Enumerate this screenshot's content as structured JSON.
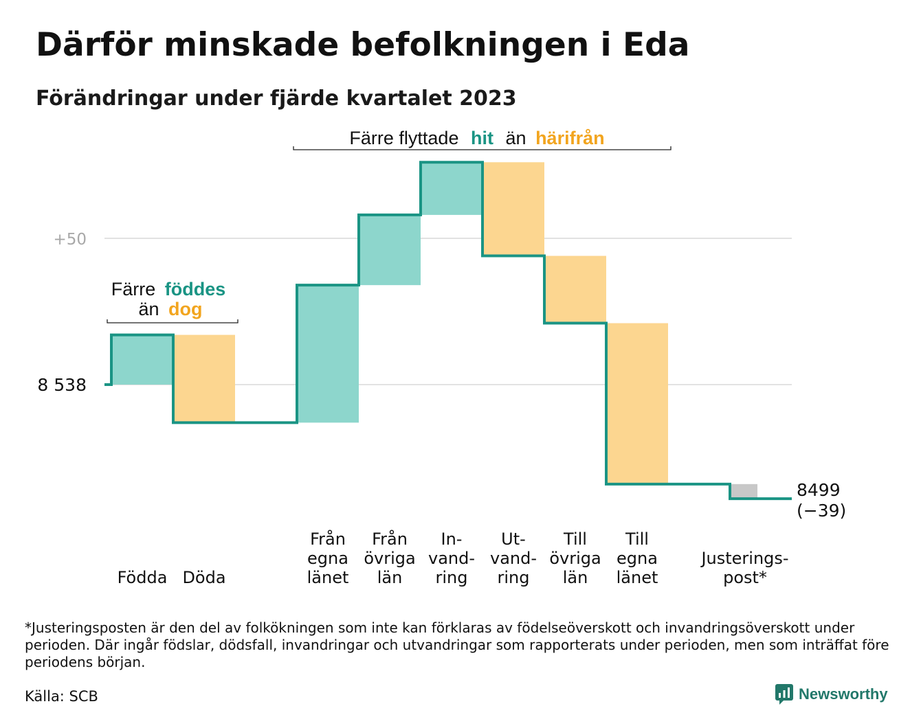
{
  "title": "Därför minskade befolkningen i Eda",
  "subtitle": "Förändringar under fjärde kvartalet 2023",
  "chart_data": {
    "type": "waterfall",
    "start_value": 8538,
    "end_value": 8499,
    "net_change": "(−39)",
    "y_ticks": [
      {
        "value": 8538,
        "label": "8  538"
      },
      {
        "value": 8588,
        "label": "+50"
      }
    ],
    "steps": [
      {
        "label": [
          "Födda"
        ],
        "delta": 17,
        "kind": "plus"
      },
      {
        "label": [
          "Döda"
        ],
        "delta": -30,
        "kind": "minus"
      },
      {
        "label": [],
        "delta": 0,
        "kind": "none"
      },
      {
        "label": [
          "Från",
          "egna",
          "länet"
        ],
        "delta": 47,
        "kind": "plus"
      },
      {
        "label": [
          "Från",
          "övriga",
          "län"
        ],
        "delta": 24,
        "kind": "plus"
      },
      {
        "label": [
          "In-",
          "vand-",
          "ring"
        ],
        "delta": 18,
        "kind": "plus"
      },
      {
        "label": [
          "Ut-",
          "vand-",
          "ring"
        ],
        "delta": -32,
        "kind": "minus"
      },
      {
        "label": [
          "Till",
          "övriga",
          "län"
        ],
        "delta": -23,
        "kind": "minus"
      },
      {
        "label": [
          "Till",
          "egna",
          "länet"
        ],
        "delta": -55,
        "kind": "minus"
      },
      {
        "label": [],
        "delta": 0,
        "kind": "none"
      },
      {
        "label": [
          "Justerings-",
          "post*"
        ],
        "delta": -5,
        "kind": "adjust"
      }
    ],
    "annotations": {
      "births": {
        "line1": "Färre",
        "highlight1": "föddes",
        "line2": "än",
        "highlight2": "dog"
      },
      "moves": {
        "prefix": "Färre flyttade",
        "highlight1": "hit",
        "middle": "än",
        "highlight2": "härifrån"
      }
    },
    "colors": {
      "plus_fill": "#8dd6cc",
      "minus_fill": "#fcd690",
      "adjust_fill": "#c8c8c8",
      "line": "#1a9484",
      "highlight_plus": "#1a9484",
      "highlight_minus": "#f2a51f",
      "grid": "#e2e2e2",
      "tick_plus50": "#a8a8a8"
    }
  },
  "footnote": "*Justeringsposten är den del av folkökningen som inte kan förklaras av födelseöverskott och invandringsöverskott under perioden. Där ingår födslar, dödsfall, invandringar och utvandringar som rapporterats under perioden, men som inträffat före periodens början.",
  "source": "Källa: SCB",
  "logo_text": "Newsworthy"
}
